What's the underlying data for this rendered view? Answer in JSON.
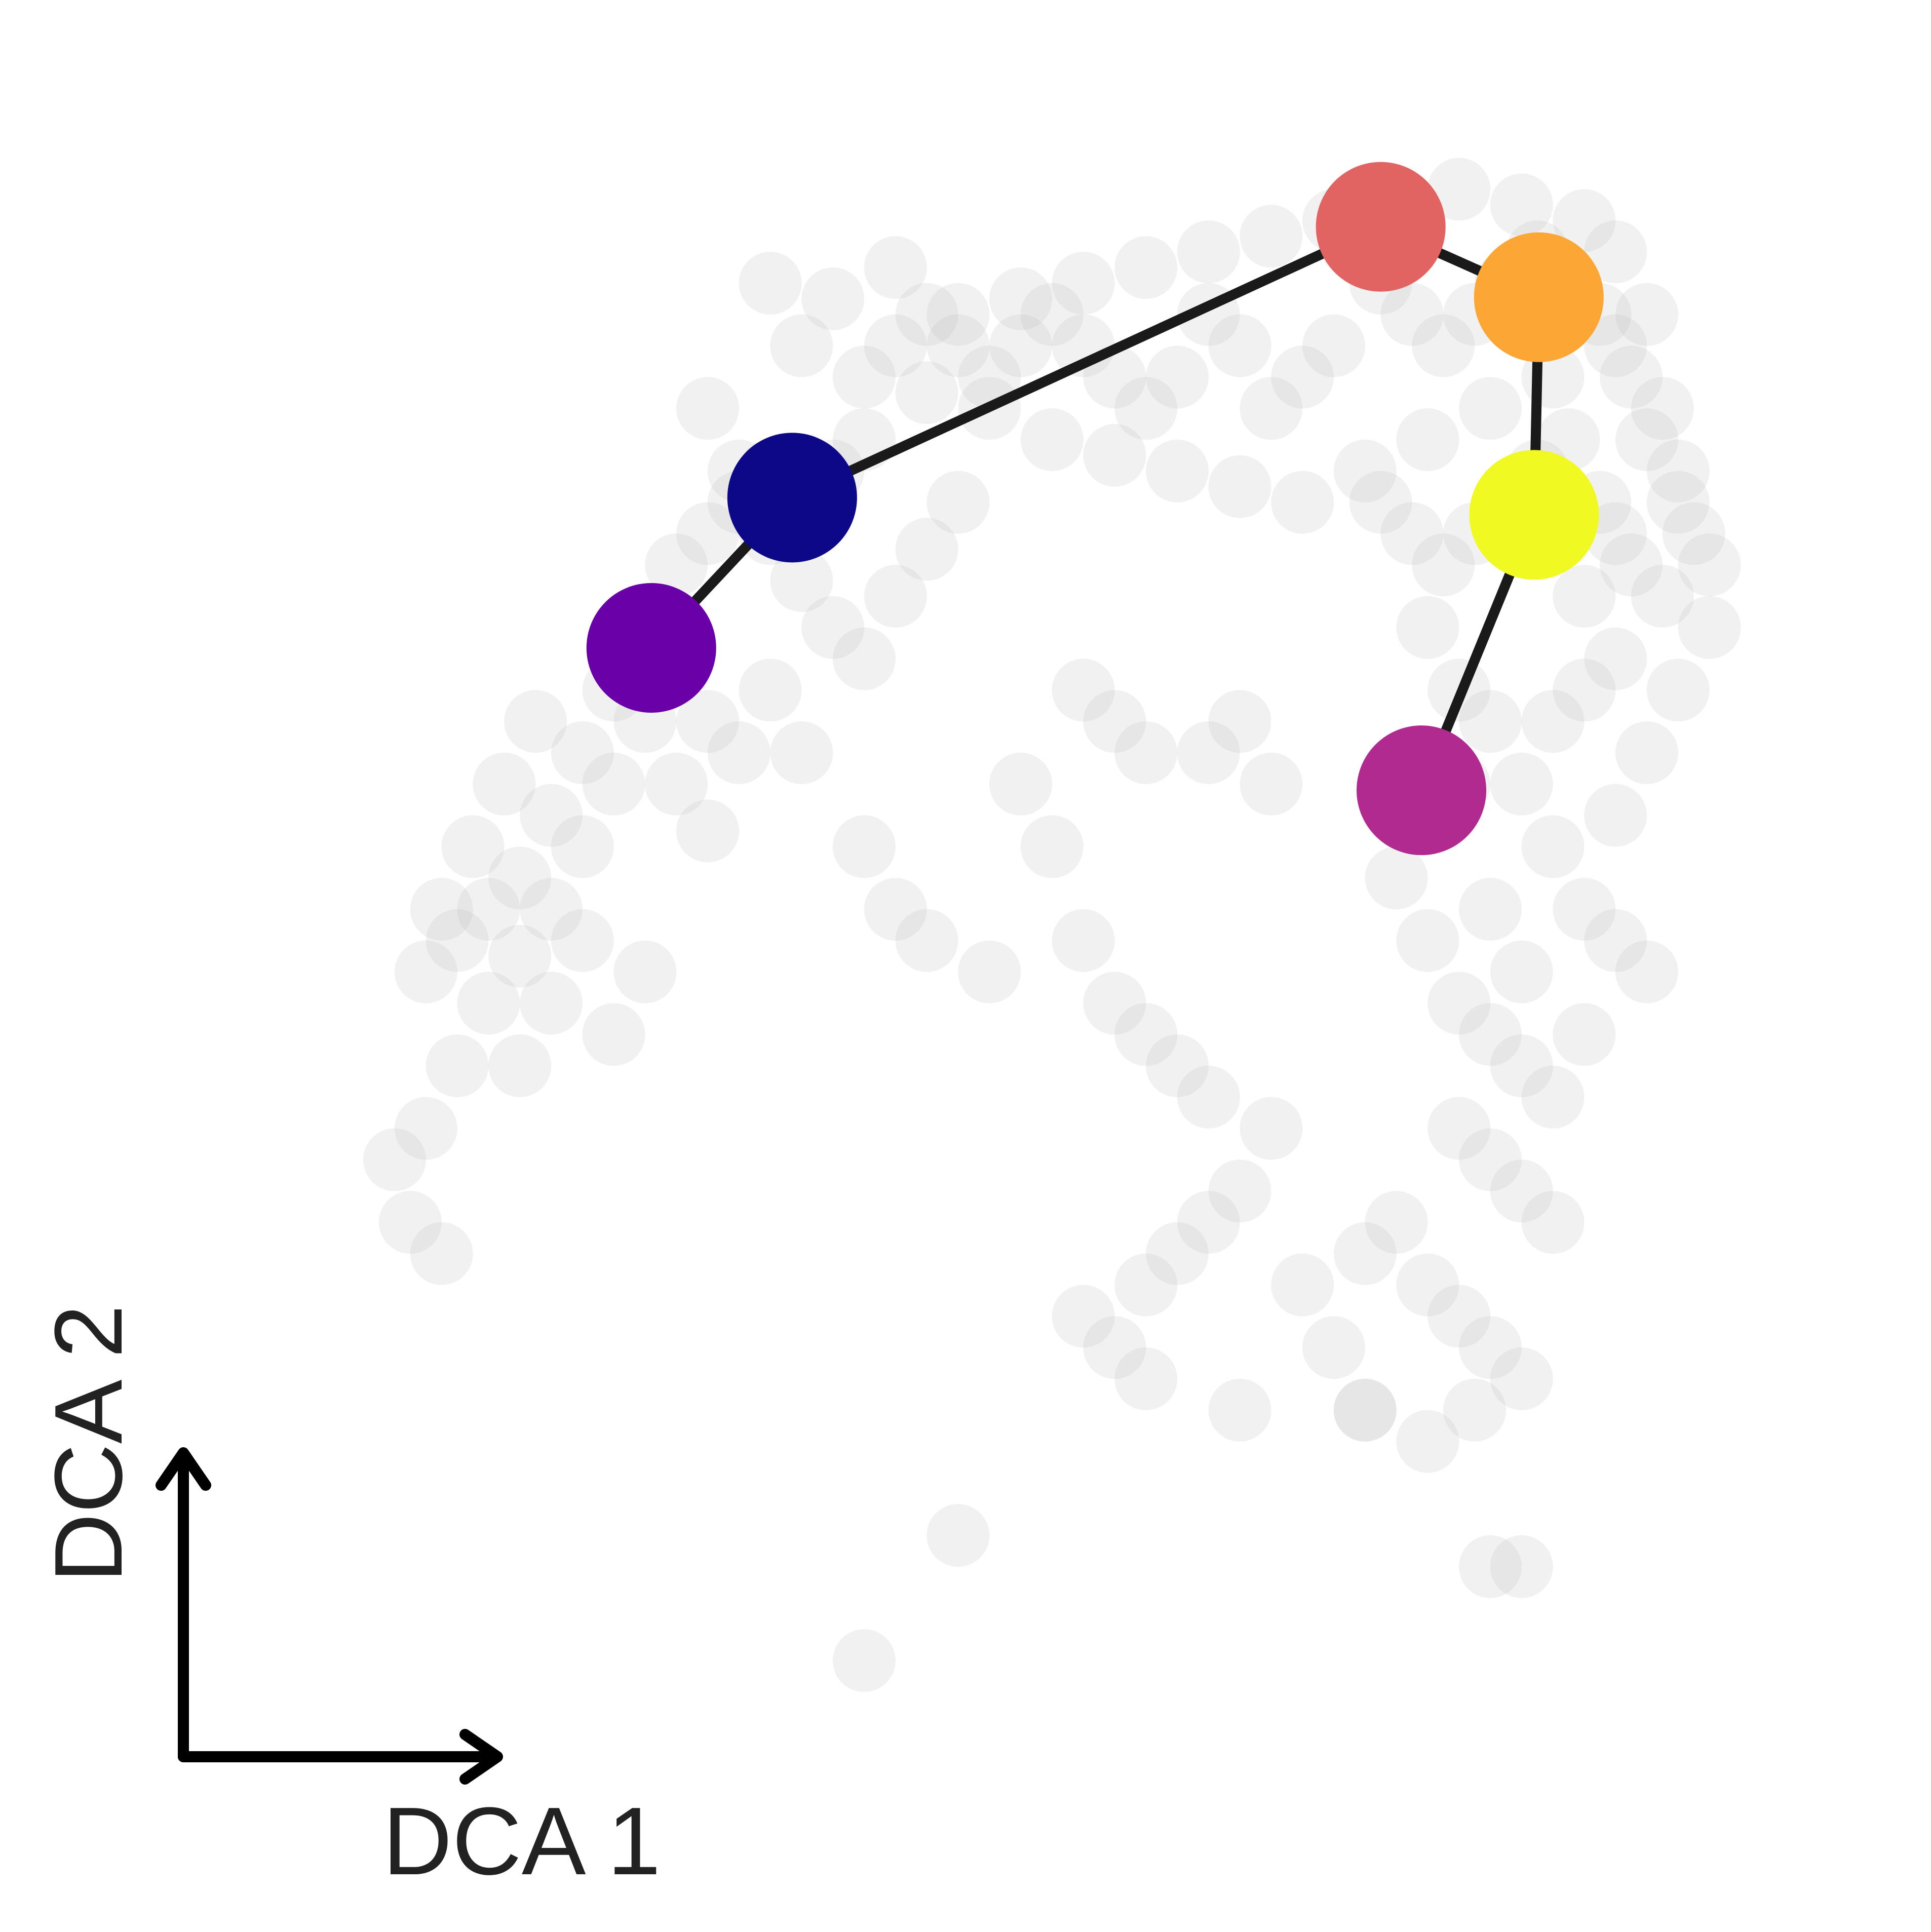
{
  "chart_data": {
    "type": "scatter",
    "title": "",
    "xlabel": "DCA 1",
    "ylabel": "DCA 2",
    "xlim": [
      0,
      100
    ],
    "ylim": [
      0,
      100
    ],
    "grid": false,
    "legend": "none",
    "background_point_color": "#bdbdbd",
    "edge_color": "#1a1a1a",
    "axis_arrow_color": "#000000",
    "cell_points": [
      [
        34,
        90
      ],
      [
        38,
        89
      ],
      [
        42,
        91
      ],
      [
        46,
        88
      ],
      [
        50,
        89
      ],
      [
        54,
        90
      ],
      [
        58,
        91
      ],
      [
        62,
        92
      ],
      [
        66,
        93
      ],
      [
        70,
        94
      ],
      [
        74,
        95
      ],
      [
        78,
        96
      ],
      [
        82,
        95
      ],
      [
        86,
        94
      ],
      [
        88,
        92
      ],
      [
        36,
        86
      ],
      [
        40,
        84
      ],
      [
        44,
        83
      ],
      [
        48,
        82
      ],
      [
        52,
        80
      ],
      [
        56,
        79
      ],
      [
        60,
        78
      ],
      [
        64,
        77
      ],
      [
        68,
        76
      ],
      [
        72,
        78
      ],
      [
        76,
        80
      ],
      [
        80,
        82
      ],
      [
        84,
        84
      ],
      [
        88,
        86
      ],
      [
        90,
        88
      ],
      [
        30,
        82
      ],
      [
        32,
        78
      ],
      [
        34,
        74
      ],
      [
        36,
        71
      ],
      [
        38,
        68
      ],
      [
        40,
        66
      ],
      [
        42,
        70
      ],
      [
        44,
        73
      ],
      [
        46,
        76
      ],
      [
        28,
        72
      ],
      [
        26,
        68
      ],
      [
        24,
        64
      ],
      [
        22,
        60
      ],
      [
        20,
        56
      ],
      [
        18,
        52
      ],
      [
        16,
        50
      ],
      [
        14,
        48
      ],
      [
        12,
        46
      ],
      [
        26,
        62
      ],
      [
        28,
        58
      ],
      [
        30,
        55
      ],
      [
        24,
        58
      ],
      [
        22,
        54
      ],
      [
        20,
        50
      ],
      [
        18,
        47
      ],
      [
        28,
        66
      ],
      [
        30,
        62
      ],
      [
        32,
        60
      ],
      [
        34,
        64
      ],
      [
        36,
        60
      ],
      [
        16,
        44
      ],
      [
        14,
        40
      ],
      [
        12,
        36
      ],
      [
        10,
        34
      ],
      [
        11,
        30
      ],
      [
        13,
        28
      ],
      [
        18,
        40
      ],
      [
        20,
        44
      ],
      [
        22,
        48
      ],
      [
        24,
        42
      ],
      [
        26,
        46
      ],
      [
        15,
        54
      ],
      [
        13,
        50
      ],
      [
        17,
        58
      ],
      [
        19,
        62
      ],
      [
        73,
        90
      ],
      [
        75,
        88
      ],
      [
        77,
        86
      ],
      [
        79,
        88
      ],
      [
        81,
        90
      ],
      [
        83,
        92
      ],
      [
        85,
        90
      ],
      [
        87,
        88
      ],
      [
        89,
        84
      ],
      [
        91,
        82
      ],
      [
        92,
        78
      ],
      [
        93,
        74
      ],
      [
        91,
        70
      ],
      [
        89,
        72
      ],
      [
        87,
        76
      ],
      [
        85,
        80
      ],
      [
        83,
        78
      ],
      [
        81,
        76
      ],
      [
        79,
        74
      ],
      [
        77,
        72
      ],
      [
        75,
        74
      ],
      [
        73,
        76
      ],
      [
        76,
        68
      ],
      [
        78,
        64
      ],
      [
        80,
        62
      ],
      [
        82,
        58
      ],
      [
        84,
        54
      ],
      [
        86,
        50
      ],
      [
        88,
        48
      ],
      [
        90,
        46
      ],
      [
        78,
        58
      ],
      [
        76,
        56
      ],
      [
        74,
        52
      ],
      [
        76,
        48
      ],
      [
        78,
        44
      ],
      [
        80,
        42
      ],
      [
        82,
        40
      ],
      [
        84,
        38
      ],
      [
        86,
        42
      ],
      [
        82,
        46
      ],
      [
        80,
        50
      ],
      [
        78,
        36
      ],
      [
        80,
        34
      ],
      [
        82,
        32
      ],
      [
        84,
        30
      ],
      [
        74,
        30
      ],
      [
        72,
        28
      ],
      [
        76,
        26
      ],
      [
        78,
        24
      ],
      [
        80,
        22
      ],
      [
        82,
        20
      ],
      [
        79,
        18
      ],
      [
        76,
        16
      ],
      [
        66,
        36
      ],
      [
        64,
        32
      ],
      [
        62,
        30
      ],
      [
        60,
        28
      ],
      [
        58,
        26
      ],
      [
        56,
        22
      ],
      [
        54,
        24
      ],
      [
        68,
        26
      ],
      [
        70,
        22
      ],
      [
        72,
        18
      ],
      [
        46,
        10
      ],
      [
        40,
        2
      ],
      [
        80,
        8
      ],
      [
        82,
        8
      ],
      [
        72,
        18
      ],
      [
        64,
        18
      ],
      [
        58,
        20
      ],
      [
        62,
        60
      ],
      [
        64,
        62
      ],
      [
        66,
        58
      ],
      [
        50,
        58
      ],
      [
        52,
        54
      ],
      [
        40,
        54
      ],
      [
        42,
        50
      ],
      [
        44,
        48
      ],
      [
        48,
        46
      ],
      [
        54,
        48
      ],
      [
        56,
        44
      ],
      [
        58,
        42
      ],
      [
        60,
        40
      ],
      [
        62,
        38
      ],
      [
        58,
        60
      ],
      [
        56,
        62
      ],
      [
        54,
        64
      ],
      [
        88,
        56
      ],
      [
        90,
        60
      ],
      [
        92,
        64
      ],
      [
        94,
        68
      ],
      [
        94,
        72
      ],
      [
        92,
        76
      ],
      [
        90,
        80
      ],
      [
        88,
        66
      ],
      [
        86,
        64
      ],
      [
        84,
        62
      ],
      [
        86,
        70
      ],
      [
        88,
        74
      ],
      [
        70,
        86
      ],
      [
        68,
        84
      ],
      [
        66,
        82
      ],
      [
        64,
        86
      ],
      [
        62,
        88
      ],
      [
        60,
        84
      ],
      [
        58,
        82
      ],
      [
        56,
        84
      ],
      [
        54,
        86
      ],
      [
        52,
        88
      ],
      [
        50,
        86
      ],
      [
        48,
        84
      ],
      [
        46,
        86
      ],
      [
        44,
        88
      ],
      [
        42,
        86
      ],
      [
        40,
        80
      ],
      [
        38,
        78
      ],
      [
        36,
        76
      ],
      [
        34,
        78
      ],
      [
        32,
        76
      ],
      [
        30,
        74
      ]
    ],
    "nodes": [
      {
        "x": 26.4,
        "y": 66.7,
        "color": "#6a00a8"
      },
      {
        "x": 35.4,
        "y": 76.3,
        "color": "#0d0887"
      },
      {
        "x": 73.0,
        "y": 93.6,
        "color": "#e16462"
      },
      {
        "x": 83.1,
        "y": 89.1,
        "color": "#fca636"
      },
      {
        "x": 82.8,
        "y": 75.2,
        "color": "#f0f921"
      },
      {
        "x": 75.6,
        "y": 57.6,
        "color": "#b12a90"
      }
    ],
    "edges": [
      [
        0,
        1
      ],
      [
        1,
        2
      ],
      [
        2,
        3
      ],
      [
        3,
        4
      ],
      [
        4,
        5
      ]
    ]
  }
}
